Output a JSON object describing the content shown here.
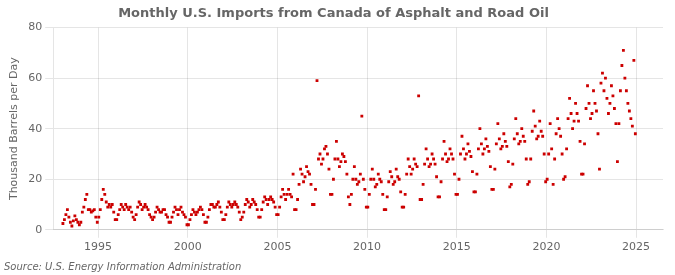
{
  "chart_data": {
    "type": "scatter",
    "title": "Monthly U.S. Imports from Canada of Asphalt and Road Oil",
    "ylabel": "Thousand Barrels per Day",
    "annotations": [
      "Source: U.S. Energy Information Administration"
    ],
    "color": "#cc0000",
    "marker": "square",
    "grid": true,
    "xlim": [
      1992.5,
      2026.5
    ],
    "ylim": [
      0,
      80
    ],
    "xticks": [
      1995,
      2000,
      2005,
      2010,
      2015,
      2020,
      2025
    ],
    "yticks": [
      0,
      20,
      40,
      60,
      80
    ],
    "x": [
      1993.0416666666667,
      1993.125,
      1993.2083333333333,
      1993.2916666666667,
      1993.375,
      1993.4583333333333,
      1993.5416666666667,
      1993.625,
      1993.7083333333333,
      1993.7916666666667,
      1993.875,
      1993.9583333333333,
      1994.0416666666667,
      1994.125,
      1994.2083333333333,
      1994.2916666666667,
      1994.375,
      1994.4583333333333,
      1994.5416666666667,
      1994.625,
      1994.7083333333333,
      1994.7916666666667,
      1994.875,
      1994.9583333333333,
      1995.0416666666667,
      1995.125,
      1995.2083333333333,
      1995.2916666666667,
      1995.375,
      1995.4583333333333,
      1995.5416666666667,
      1995.625,
      1995.7083333333333,
      1995.7916666666667,
      1995.875,
      1995.9583333333333,
      1996.0416666666667,
      1996.125,
      1996.2083333333333,
      1996.2916666666667,
      1996.375,
      1996.4583333333333,
      1996.5416666666667,
      1996.625,
      1996.7083333333333,
      1996.7916666666667,
      1996.875,
      1996.9583333333333,
      1997.0416666666667,
      1997.125,
      1997.2083333333333,
      1997.2916666666667,
      1997.375,
      1997.4583333333333,
      1997.5416666666667,
      1997.625,
      1997.7083333333333,
      1997.7916666666667,
      1997.875,
      1997.9583333333333,
      1998.0416666666667,
      1998.125,
      1998.2083333333333,
      1998.2916666666667,
      1998.375,
      1998.4583333333333,
      1998.5416666666667,
      1998.625,
      1998.7083333333333,
      1998.7916666666667,
      1998.875,
      1998.9583333333333,
      1999.0416666666667,
      1999.125,
      1999.2083333333333,
      1999.2916666666667,
      1999.375,
      1999.4583333333333,
      1999.5416666666667,
      1999.625,
      1999.7083333333333,
      1999.7916666666667,
      1999.875,
      1999.9583333333333,
      2000.0416666666667,
      2000.125,
      2000.2083333333333,
      2000.2916666666667,
      2000.375,
      2000.4583333333333,
      2000.5416666666667,
      2000.625,
      2000.7083333333333,
      2000.7916666666667,
      2000.875,
      2000.9583333333333,
      2001.0416666666667,
      2001.125,
      2001.2083333333333,
      2001.2916666666667,
      2001.375,
      2001.4583333333333,
      2001.5416666666667,
      2001.625,
      2001.7083333333333,
      2001.7916666666667,
      2001.875,
      2001.9583333333333,
      2002.0416666666667,
      2002.125,
      2002.2083333333333,
      2002.2916666666667,
      2002.375,
      2002.4583333333333,
      2002.5416666666667,
      2002.625,
      2002.7083333333333,
      2002.7916666666667,
      2002.875,
      2002.9583333333333,
      2003.0416666666667,
      2003.125,
      2003.2083333333333,
      2003.2916666666667,
      2003.375,
      2003.4583333333333,
      2003.5416666666667,
      2003.625,
      2003.7083333333333,
      2003.7916666666667,
      2003.875,
      2003.9583333333333,
      2004.0416666666667,
      2004.125,
      2004.2083333333333,
      2004.2916666666667,
      2004.375,
      2004.4583333333333,
      2004.5416666666667,
      2004.625,
      2004.7083333333333,
      2004.7916666666667,
      2004.875,
      2004.9583333333333,
      2005.0416666666667,
      2005.125,
      2005.2083333333333,
      2005.2916666666667,
      2005.375,
      2005.4583333333333,
      2005.5416666666667,
      2005.625,
      2005.7083333333333,
      2005.7916666666667,
      2005.875,
      2005.9583333333333,
      2006.0416666666667,
      2006.125,
      2006.2083333333333,
      2006.2916666666667,
      2006.375,
      2006.4583333333333,
      2006.5416666666667,
      2006.625,
      2006.7083333333333,
      2006.7916666666667,
      2006.875,
      2006.9583333333333,
      2007.0416666666667,
      2007.125,
      2007.2083333333333,
      2007.2916666666667,
      2007.375,
      2007.4583333333333,
      2007.5416666666667,
      2007.625,
      2007.7083333333333,
      2007.7916666666667,
      2007.875,
      2007.9583333333333,
      2008.0416666666667,
      2008.125,
      2008.2083333333333,
      2008.2916666666667,
      2008.375,
      2008.4583333333333,
      2008.5416666666667,
      2008.625,
      2008.7083333333333,
      2008.7916666666667,
      2008.875,
      2008.9583333333333,
      2009.0416666666667,
      2009.125,
      2009.2083333333333,
      2009.2916666666667,
      2009.375,
      2009.4583333333333,
      2009.5416666666667,
      2009.625,
      2009.7083333333333,
      2009.7916666666667,
      2009.875,
      2009.9583333333333,
      2010.0416666666667,
      2010.125,
      2010.2083333333333,
      2010.2916666666667,
      2010.375,
      2010.4583333333333,
      2010.5416666666667,
      2010.625,
      2010.7083333333333,
      2010.7916666666667,
      2010.875,
      2010.9583333333333,
      2011.0416666666667,
      2011.125,
      2011.2083333333333,
      2011.2916666666667,
      2011.375,
      2011.4583333333333,
      2011.5416666666667,
      2011.625,
      2011.7083333333333,
      2011.7916666666667,
      2011.875,
      2011.9583333333333,
      2012.0416666666667,
      2012.125,
      2012.2083333333333,
      2012.2916666666667,
      2012.375,
      2012.4583333333333,
      2012.5416666666667,
      2012.625,
      2012.7083333333333,
      2012.7916666666667,
      2012.875,
      2012.9583333333333,
      2013.0416666666667,
      2013.125,
      2013.2083333333333,
      2013.2916666666667,
      2013.375,
      2013.4583333333333,
      2013.5416666666667,
      2013.625,
      2013.7083333333333,
      2013.7916666666667,
      2013.875,
      2013.9583333333333,
      2014.0416666666667,
      2014.125,
      2014.2083333333333,
      2014.2916666666667,
      2014.375,
      2014.4583333333333,
      2014.5416666666667,
      2014.625,
      2014.7083333333333,
      2014.7916666666667,
      2014.875,
      2014.9583333333333,
      2015.0416666666667,
      2015.125,
      2015.2083333333333,
      2015.2916666666667,
      2015.375,
      2015.4583333333333,
      2015.5416666666667,
      2015.625,
      2015.7083333333333,
      2015.7916666666667,
      2015.875,
      2015.9583333333333,
      2016.0416666666667,
      2016.125,
      2016.2083333333333,
      2016.2916666666667,
      2016.375,
      2016.4583333333333,
      2016.5416666666667,
      2016.625,
      2016.7083333333333,
      2016.7916666666667,
      2016.875,
      2016.9583333333333,
      2017.0416666666667,
      2017.125,
      2017.2083333333333,
      2017.2916666666667,
      2017.375,
      2017.4583333333333,
      2017.5416666666667,
      2017.625,
      2017.7083333333333,
      2017.7916666666667,
      2017.875,
      2017.9583333333333,
      2018.0416666666667,
      2018.125,
      2018.2083333333333,
      2018.2916666666667,
      2018.375,
      2018.4583333333333,
      2018.5416666666667,
      2018.625,
      2018.7083333333333,
      2018.7916666666667,
      2018.875,
      2018.9583333333333,
      2019.0416666666667,
      2019.125,
      2019.2083333333333,
      2019.2916666666667,
      2019.375,
      2019.4583333333333,
      2019.5416666666667,
      2019.625,
      2019.7083333333333,
      2019.7916666666667,
      2019.875,
      2019.9583333333333,
      2020.0416666666667,
      2020.125,
      2020.2083333333333,
      2020.2916666666667,
      2020.375,
      2020.4583333333333,
      2020.5416666666667,
      2020.625,
      2020.7083333333333,
      2020.7916666666667,
      2020.875,
      2020.9583333333333,
      2021.0416666666667,
      2021.125,
      2021.2083333333333,
      2021.2916666666667,
      2021.375,
      2021.4583333333333,
      2021.5416666666667,
      2021.625,
      2021.7083333333333,
      2021.7916666666667,
      2021.875,
      2021.9583333333333,
      2022.0416666666667,
      2022.125,
      2022.2083333333333,
      2022.2916666666667,
      2022.375,
      2022.4583333333333,
      2022.5416666666667,
      2022.625,
      2022.7083333333333,
      2022.7916666666667,
      2022.875,
      2022.9583333333333,
      2023.0416666666667,
      2023.125,
      2023.2083333333333,
      2023.2916666666667,
      2023.375,
      2023.4583333333333,
      2023.5416666666667,
      2023.625,
      2023.7083333333333,
      2023.7916666666667,
      2023.875,
      2023.9583333333333,
      2024.0416666666667,
      2024.125,
      2024.2083333333333,
      2024.2916666666667,
      2024.375,
      2024.4583333333333,
      2024.5416666666667,
      2024.625,
      2024.7083333333333,
      2024.7916666666667,
      2024.875,
      2024.9583333333333
    ],
    "values": [
      2.5,
      4.0,
      6.0,
      8.0,
      5.0,
      3.0,
      1.5,
      3.5,
      5.5,
      4.0,
      3.0,
      2.0,
      3.0,
      7.0,
      9.0,
      12.0,
      14.0,
      8.0,
      8.0,
      7.0,
      7.5,
      8.0,
      5.0,
      3.0,
      5.0,
      8.0,
      12.0,
      16.0,
      14.0,
      11.0,
      9.0,
      10.0,
      9.0,
      10.0,
      7.0,
      4.0,
      4.0,
      6.0,
      8.0,
      10.0,
      9.0,
      8.0,
      10.0,
      9.0,
      8.0,
      9.0,
      7.0,
      5.0,
      4.0,
      6.0,
      9.0,
      11.0,
      10.0,
      8.0,
      9.0,
      10.0,
      9.0,
      8.0,
      6.0,
      5.0,
      4.0,
      5.0,
      7.0,
      9.0,
      8.0,
      7.0,
      7.0,
      8.0,
      8.0,
      6.0,
      5.0,
      3.0,
      3.0,
      5.0,
      7.0,
      9.0,
      8.0,
      6.0,
      8.0,
      9.0,
      7.0,
      6.0,
      5.0,
      2.0,
      2.0,
      4.0,
      6.0,
      8.0,
      7.0,
      6.0,
      7.0,
      8.0,
      9.0,
      8.0,
      6.0,
      3.0,
      3.0,
      5.0,
      8.0,
      10.0,
      10.0,
      9.0,
      9.0,
      10.0,
      11.0,
      9.0,
      7.0,
      4.0,
      4.0,
      6.0,
      9.0,
      11.0,
      10.0,
      9.0,
      10.0,
      11.0,
      10.0,
      9.0,
      7.0,
      4.0,
      5.0,
      7.0,
      10.0,
      12.0,
      11.0,
      9.0,
      10.0,
      12.0,
      11.0,
      10.0,
      8.0,
      5.0,
      5.0,
      8.0,
      11.0,
      13.0,
      12.0,
      10.0,
      12.0,
      13.0,
      12.0,
      11.0,
      9.0,
      6.0,
      6.0,
      9.0,
      13.0,
      16.0,
      14.0,
      12.0,
      14.0,
      16.0,
      14.0,
      13.0,
      22.0,
      8.0,
      8.0,
      12.0,
      18.0,
      24.0,
      22.0,
      19.0,
      21.0,
      25.0,
      23.0,
      22.0,
      18.0,
      10.0,
      10.0,
      16.0,
      59.0,
      28.0,
      30.0,
      26.0,
      28.0,
      32.0,
      33.0,
      30.0,
      24.0,
      14.0,
      14.0,
      20.0,
      28.0,
      35.0,
      28.0,
      25.0,
      27.0,
      30.0,
      29.0,
      27.0,
      22.0,
      13.0,
      10.0,
      14.0,
      20.0,
      25.0,
      20.0,
      18.0,
      19.0,
      22.0,
      45.0,
      20.0,
      16.0,
      9.0,
      9.0,
      14.0,
      20.0,
      24.0,
      20.0,
      17.0,
      18.0,
      22.0,
      20.0,
      19.0,
      14.0,
      8.0,
      8.0,
      13.0,
      19.0,
      23.0,
      21.0,
      18.0,
      19.0,
      24.0,
      21.0,
      20.0,
      15.0,
      9.0,
      9.0,
      14.0,
      22.0,
      28.0,
      25.0,
      22.0,
      24.0,
      28.0,
      26.0,
      25.0,
      53.0,
      12.0,
      12.0,
      18.0,
      26.0,
      32.0,
      28.0,
      25.0,
      26.0,
      30.0,
      28.0,
      26.0,
      21.0,
      13.0,
      13.0,
      19.0,
      28.0,
      35.0,
      30.0,
      27.0,
      28.0,
      32.0,
      30.0,
      28.0,
      22.0,
      14.0,
      14.0,
      20.0,
      30.0,
      37.0,
      32.0,
      28.0,
      30.0,
      34.0,
      31.0,
      29.0,
      23.0,
      15.0,
      15.0,
      22.0,
      32.0,
      40.0,
      34.0,
      30.0,
      32.0,
      36.0,
      33.0,
      31.0,
      25.0,
      16.0,
      16.0,
      24.0,
      34.0,
      42.0,
      36.0,
      32.0,
      33.0,
      38.0,
      35.0,
      33.0,
      27.0,
      17.0,
      18.0,
      26.0,
      36.0,
      44.0,
      38.0,
      34.0,
      35.0,
      40.0,
      37.0,
      35.0,
      28.0,
      18.0,
      19.0,
      28.0,
      39.0,
      47.0,
      41.0,
      36.0,
      37.0,
      43.0,
      39.0,
      37.0,
      30.0,
      19.0,
      20.0,
      30.0,
      42.0,
      32.0,
      18.0,
      28.0,
      38.0,
      44.0,
      40.0,
      37.0,
      30.0,
      20.0,
      21.0,
      32.0,
      44.0,
      52.0,
      46.0,
      40.0,
      43.0,
      50.0,
      46.0,
      43.0,
      35.0,
      22.0,
      22.0,
      34.0,
      48.0,
      57.0,
      50.0,
      44.0,
      46.0,
      55.0,
      50.0,
      47.0,
      38.0,
      24.0,
      58.0,
      62.0,
      55.0,
      60.0,
      52.0,
      46.0,
      50.0,
      57.0,
      53.0,
      48.0,
      42.0,
      27.0,
      42.0,
      55.0,
      65.0,
      71.0,
      60.0,
      55.0,
      50.0,
      47.0,
      44.0,
      41.0,
      67.0,
      38.0
    ]
  }
}
